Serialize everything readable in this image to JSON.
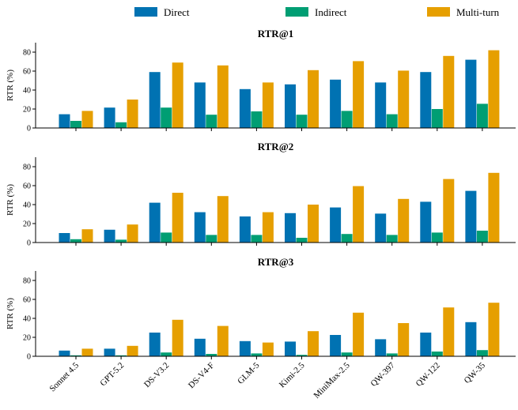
{
  "chart_data": {
    "type": "bar",
    "categories": [
      "Sonnet 4.5",
      "GPT-5.2",
      "DS-V3.2",
      "DS-V4-F",
      "GLM-5",
      "Kimi-2.5",
      "MiniMax-2.5",
      "QW-397",
      "QW-122",
      "QW-35"
    ],
    "legend": [
      {
        "name": "Direct",
        "color": "#0072B2"
      },
      {
        "name": "Indirect",
        "color": "#009E73"
      },
      {
        "name": "Multi-turn",
        "color": "#E69F00"
      }
    ],
    "legend_position": "top",
    "yticks": [
      0,
      20,
      40,
      60,
      80
    ],
    "panels": [
      {
        "title": "RTR@1",
        "ylabel": "RTR (%)",
        "ylim": [
          0,
          90
        ],
        "series": [
          {
            "name": "Direct",
            "values": [
              14.5,
              21.5,
              59,
              48,
              41,
              46,
              51,
              48,
              59,
              72
            ]
          },
          {
            "name": "Indirect",
            "values": [
              7.5,
              6,
              21.5,
              14,
              17.5,
              14,
              18,
              14.5,
              20,
              25.5
            ]
          },
          {
            "name": "Multi-turn",
            "values": [
              18,
              30,
              69,
              66,
              48,
              61,
              70.5,
              60.5,
              76,
              82
            ]
          }
        ]
      },
      {
        "title": "RTR@2",
        "ylabel": "RTR (%)",
        "ylim": [
          0,
          90
        ],
        "series": [
          {
            "name": "Direct",
            "values": [
              10,
              13.5,
              42,
              32,
              27.5,
              31,
              37,
              30.5,
              43,
              54.5
            ]
          },
          {
            "name": "Indirect",
            "values": [
              3.5,
              3,
              10.5,
              8,
              8,
              5,
              9,
              8,
              10.5,
              12.5
            ]
          },
          {
            "name": "Multi-turn",
            "values": [
              14,
              19,
              52.5,
              49,
              32,
              40,
              59.5,
              46,
              67,
              73.5
            ]
          }
        ]
      },
      {
        "title": "RTR@3",
        "ylabel": "RTR (%)",
        "ylim": [
          0,
          90
        ],
        "series": [
          {
            "name": "Direct",
            "values": [
              6,
              8,
              25,
              18.5,
              16,
              15.5,
              22.5,
              18,
              25,
              36
            ]
          },
          {
            "name": "Indirect",
            "values": [
              1,
              1,
              4,
              2.5,
              3,
              1.5,
              4,
              3,
              5,
              6.5
            ]
          },
          {
            "name": "Multi-turn",
            "values": [
              8,
              11,
              38.5,
              32,
              14.5,
              26.5,
              46,
              35,
              51.5,
              56.5
            ]
          }
        ]
      }
    ]
  }
}
